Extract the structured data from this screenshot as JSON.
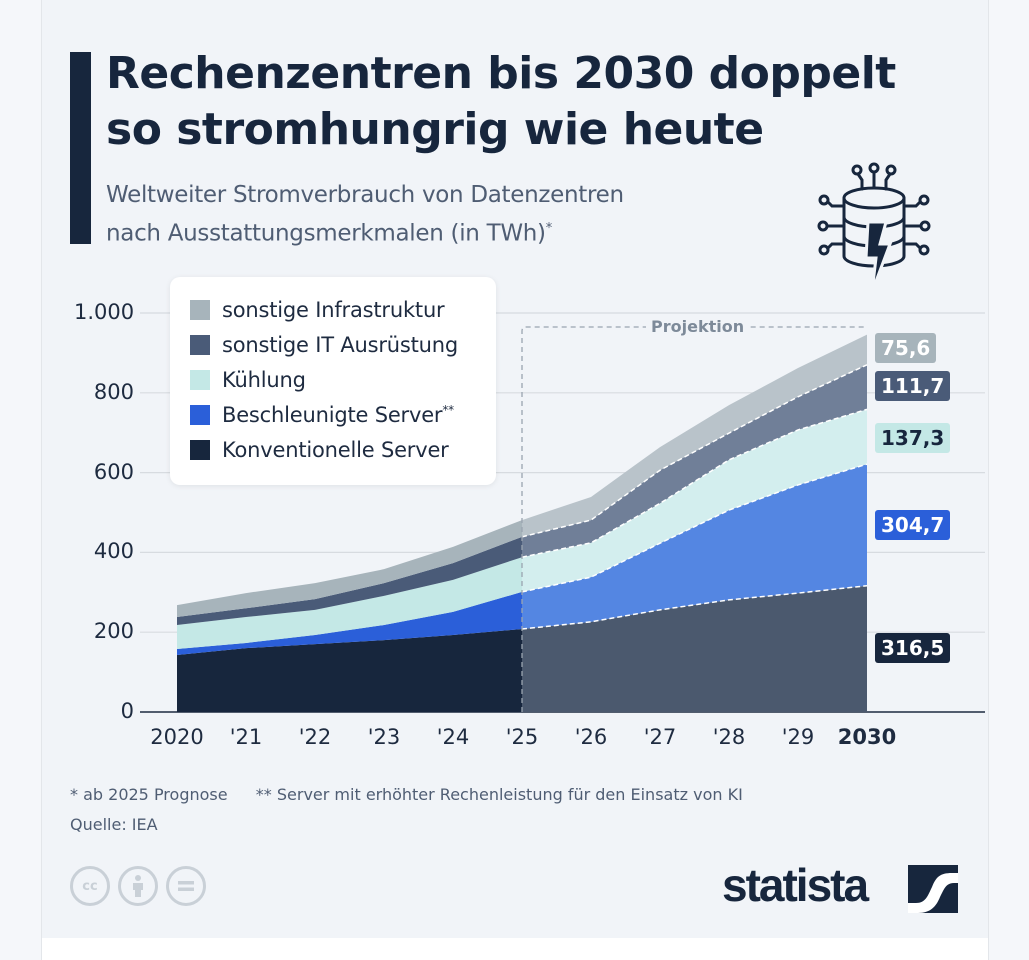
{
  "header": {
    "title_line1": "Rechenzentren bis 2030 doppelt",
    "title_line2": "so stromhungrig wie heute",
    "subtitle_line1": "Weltweiter Stromverbrauch von Datenzentren",
    "subtitle_line2": "nach Ausstattungsmerkmalen (in TWh)",
    "subtitle_mark": "*",
    "icon": "datacenter-lightning-icon"
  },
  "chart_data": {
    "type": "area",
    "stacked": true,
    "title": "Rechenzentren bis 2030 doppelt so stromhungrig wie heute",
    "subtitle": "Weltweiter Stromverbrauch von Datenzentren nach Ausstattungsmerkmalen (in TWh)*",
    "xlabel": "",
    "ylabel": "TWh",
    "ylim": [
      0,
      1000
    ],
    "yticks": [
      0,
      200,
      400,
      600,
      800,
      1000
    ],
    "ytick_labels": [
      "0",
      "200",
      "400",
      "600",
      "800",
      "1.000"
    ],
    "categories": [
      "2020",
      "'21",
      "'22",
      "'23",
      "'24",
      "'25",
      "'26",
      "'27",
      "'28",
      "'29",
      "2030"
    ],
    "bold_categories": [
      "2030"
    ],
    "grid": true,
    "legend_position": "top-left",
    "projection": {
      "label": "Projektion",
      "from_index": 5,
      "to_index": 10
    },
    "series": [
      {
        "name": "Konventionelle Server",
        "color": "#17263d",
        "projection_color": "#4b596e",
        "values": [
          143,
          160,
          170,
          180,
          193,
          208,
          226,
          256,
          281,
          298,
          316.5
        ]
      },
      {
        "name": "Beschleunigte Server",
        "name_mark": "**",
        "color": "#2b5fd9",
        "projection_color": "#5486e2",
        "values": [
          15,
          13,
          23,
          38,
          58,
          93,
          112,
          167,
          225,
          271,
          304.7
        ]
      },
      {
        "name": "Kühlung",
        "color": "#c4e8e6",
        "projection_color": "#d3eeee",
        "values": [
          60,
          65,
          63,
          73,
          80,
          87,
          86,
          100,
          126,
          138,
          137.3
        ]
      },
      {
        "name": "sonstige IT Ausrüstung",
        "color": "#4a5b78",
        "projection_color": "#707f98",
        "values": [
          20,
          22,
          27,
          32,
          42,
          51,
          57,
          83,
          67,
          83,
          111.7
        ]
      },
      {
        "name": "sonstige Infrastruktur",
        "color": "#a7b4bb",
        "projection_color": "#b9c3ca",
        "values": [
          30,
          38,
          40,
          35,
          41,
          42,
          58,
          58,
          70,
          72,
          75.6
        ]
      }
    ],
    "end_labels": [
      {
        "series": "sonstige Infrastruktur",
        "text": "75,6",
        "bg": "#a7b4bb",
        "fg": "#ffffff"
      },
      {
        "series": "sonstige IT Ausrüstung",
        "text": "111,7",
        "bg": "#4a5b78",
        "fg": "#ffffff"
      },
      {
        "series": "Kühlung",
        "text": "137,3",
        "bg": "#c4e8e6",
        "fg": "#17263d"
      },
      {
        "series": "Beschleunigte Server",
        "text": "304,7",
        "bg": "#2b5fd9",
        "fg": "#ffffff"
      },
      {
        "series": "Konventionelle Server",
        "text": "316,5",
        "bg": "#17263d",
        "fg": "#ffffff"
      }
    ]
  },
  "legend": {
    "items": [
      {
        "label": "sonstige Infrastruktur",
        "mark": "",
        "color": "#a7b4bb"
      },
      {
        "label": "sonstige IT Ausrüstung",
        "mark": "",
        "color": "#4a5b78"
      },
      {
        "label": "Kühlung",
        "mark": "",
        "color": "#c4e8e6"
      },
      {
        "label": "Beschleunigte Server",
        "mark": "**",
        "color": "#2b5fd9"
      },
      {
        "label": "Konventionelle Server",
        "mark": "",
        "color": "#17263d"
      }
    ]
  },
  "footer": {
    "note1": "* ab 2025 Prognose",
    "note2": "** Server mit erhöhter Rechenleistung für den Einsatz von KI",
    "source": "Quelle: IEA",
    "license_icons": [
      "cc-icon",
      "attribution-icon",
      "no-derivatives-icon"
    ],
    "cc_text": "cc",
    "brand": "statista"
  }
}
